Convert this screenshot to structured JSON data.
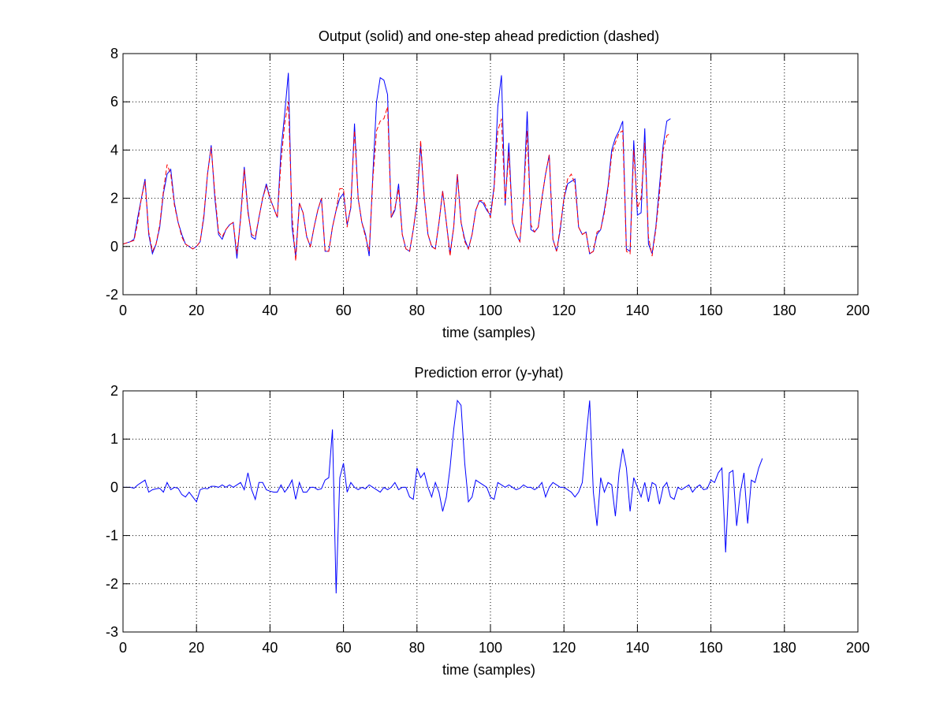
{
  "colors": {
    "output": "#0000ff",
    "prediction": "#ff0000",
    "error": "#0000ff",
    "grid": "#000000",
    "axes": "#000000"
  },
  "chart_data": [
    {
      "type": "line",
      "title": "Output (solid) and one-step ahead prediction (dashed)",
      "xlabel": "time (samples)",
      "ylabel": "",
      "xlim": [
        0,
        200
      ],
      "ylim": [
        -2,
        8
      ],
      "xticks": [
        0,
        20,
        40,
        60,
        80,
        100,
        120,
        140,
        160,
        180,
        200
      ],
      "yticks": [
        -2,
        0,
        2,
        4,
        6,
        8
      ],
      "grid": true,
      "x_start": 0,
      "series": [
        {
          "style": "solid",
          "color": "#0000ff",
          "values": [
            0.1,
            0.15,
            0.2,
            0.3,
            1.2,
            2.0,
            2.8,
            0.5,
            -0.3,
            0.1,
            0.8,
            2.2,
            3.0,
            3.2,
            1.8,
            1.0,
            0.5,
            0.1,
            0.0,
            -0.1,
            0.0,
            0.2,
            1.2,
            3.0,
            4.2,
            2.0,
            0.5,
            0.3,
            0.7,
            0.9,
            1.0,
            -0.5,
            1.2,
            3.3,
            1.5,
            0.4,
            0.3,
            1.2,
            2.0,
            2.6,
            2.0,
            1.6,
            1.2,
            4.0,
            5.5,
            7.2,
            0.8,
            -0.4,
            1.8,
            1.4,
            0.4,
            0.0,
            0.8,
            1.5,
            2.0,
            -0.2,
            -0.2,
            0.8,
            1.5,
            2.0,
            2.2,
            0.9,
            1.6,
            5.1,
            2.0,
            1.0,
            0.5,
            -0.4,
            3.0,
            6.0,
            7.0,
            6.9,
            6.3,
            1.2,
            1.5,
            2.6,
            0.5,
            -0.1,
            -0.2,
            0.7,
            1.8,
            4.2,
            2.0,
            0.5,
            0.0,
            -0.1,
            1.0,
            2.3,
            1.0,
            -0.3,
            0.8,
            3.0,
            1.0,
            0.3,
            -0.1,
            0.5,
            1.5,
            1.9,
            1.8,
            1.5,
            1.3,
            2.5,
            5.8,
            7.1,
            1.7,
            4.3,
            1.0,
            0.5,
            0.2,
            2.0,
            5.6,
            0.7,
            0.6,
            0.8,
            2.0,
            3.0,
            3.8,
            0.3,
            -0.2,
            0.7,
            2.0,
            2.6,
            2.7,
            2.8,
            0.8,
            0.5,
            0.6,
            -0.3,
            -0.2,
            0.5,
            0.7,
            1.5,
            2.5,
            4.0,
            4.5,
            4.8,
            5.2,
            -0.1,
            -0.2,
            4.4,
            1.3,
            1.4,
            4.9,
            0.1,
            -0.3,
            0.8,
            2.5,
            4.2,
            5.2,
            5.3
          ]
        },
        {
          "style": "dashed",
          "color": "#ff0000",
          "values": [
            0.1,
            0.15,
            0.2,
            0.25,
            1.0,
            2.0,
            2.7,
            0.6,
            -0.2,
            0.1,
            0.9,
            2.3,
            3.4,
            3.0,
            1.7,
            1.0,
            0.4,
            0.1,
            0.0,
            -0.1,
            0.0,
            0.2,
            1.3,
            3.0,
            4.1,
            2.2,
            0.6,
            0.4,
            0.7,
            0.9,
            1.0,
            -0.3,
            1.1,
            3.2,
            1.4,
            0.5,
            0.4,
            1.2,
            2.0,
            2.5,
            2.0,
            1.6,
            1.2,
            3.5,
            5.1,
            6.0,
            1.3,
            -0.6,
            1.8,
            1.4,
            0.4,
            0.0,
            0.8,
            1.5,
            2.0,
            -0.2,
            -0.2,
            0.8,
            1.5,
            2.4,
            2.4,
            0.8,
            1.7,
            4.8,
            2.0,
            1.0,
            0.4,
            -0.2,
            2.8,
            4.8,
            5.2,
            5.3,
            5.8,
            1.2,
            1.6,
            2.4,
            0.5,
            -0.1,
            -0.2,
            0.7,
            1.9,
            4.4,
            2.0,
            0.5,
            0.0,
            -0.1,
            1.0,
            2.3,
            1.0,
            -0.4,
            0.8,
            3.0,
            1.0,
            0.2,
            -0.1,
            0.5,
            1.5,
            1.9,
            1.9,
            1.6,
            1.2,
            2.4,
            4.8,
            5.3,
            1.8,
            3.9,
            1.0,
            0.5,
            0.2,
            2.0,
            4.8,
            0.9,
            0.6,
            0.8,
            2.0,
            3.0,
            3.8,
            0.3,
            -0.2,
            0.8,
            2.0,
            2.8,
            3.0,
            2.6,
            0.8,
            0.5,
            0.6,
            -0.3,
            -0.2,
            0.6,
            0.7,
            1.4,
            2.4,
            3.8,
            4.3,
            4.7,
            4.8,
            -0.2,
            -0.3,
            4.0,
            1.6,
            2.0,
            4.3,
            0.4,
            -0.4,
            0.7,
            2.2,
            4.0,
            4.6,
            4.7
          ]
        }
      ]
    },
    {
      "type": "line",
      "title": "Prediction error (y-yhat)",
      "xlabel": "time (samples)",
      "ylabel": "",
      "xlim": [
        0,
        200
      ],
      "ylim": [
        -3,
        2
      ],
      "xticks": [
        0,
        20,
        40,
        60,
        80,
        100,
        120,
        140,
        160,
        180,
        200
      ],
      "yticks": [
        -3,
        -2,
        -1,
        0,
        1,
        2
      ],
      "grid": true,
      "x_start": 0,
      "series": [
        {
          "style": "solid",
          "color": "#0000ff",
          "values": [
            0,
            0,
            0,
            -0.02,
            0.05,
            0.1,
            0.15,
            -0.1,
            -0.05,
            -0.03,
            -0.02,
            -0.1,
            0.1,
            -0.05,
            0.0,
            -0.02,
            -0.15,
            -0.2,
            -0.1,
            -0.2,
            -0.3,
            -0.05,
            -0.02,
            -0.03,
            0.02,
            0.02,
            0.0,
            0.05,
            0.0,
            0.05,
            0.0,
            0.05,
            0.1,
            -0.05,
            0.3,
            -0.05,
            -0.25,
            0.1,
            0.1,
            -0.05,
            -0.08,
            -0.1,
            -0.1,
            0.05,
            -0.1,
            0.0,
            0.15,
            -0.25,
            0.1,
            -0.1,
            -0.1,
            0.0,
            0.0,
            -0.05,
            -0.03,
            0.15,
            0.2,
            1.2,
            -2.2,
            0.2,
            0.5,
            -0.1,
            0.1,
            0.0,
            -0.05,
            0.0,
            -0.03,
            0.05,
            0.0,
            -0.05,
            -0.1,
            0.0,
            -0.05,
            0.0,
            0.1,
            -0.05,
            0.0,
            0.0,
            -0.2,
            -0.25,
            0.4,
            0.2,
            0.3,
            0.0,
            -0.2,
            0.1,
            -0.1,
            -0.5,
            -0.2,
            0.4,
            1.2,
            1.8,
            1.7,
            0.5,
            -0.3,
            -0.2,
            0.15,
            0.1,
            0.05,
            0.0,
            -0.2,
            -0.25,
            0.1,
            0.05,
            0.0,
            0.05,
            0.0,
            -0.05,
            -0.02,
            0.05,
            0.0,
            0.0,
            -0.05,
            0.0,
            0.1,
            -0.2,
            0.0,
            0.1,
            0.05,
            0.0,
            0.0,
            -0.05,
            -0.1,
            -0.2,
            -0.1,
            0.1,
            1.0,
            1.8,
            -0.1,
            -0.8,
            0.2,
            -0.1,
            0.1,
            0.05,
            -0.6,
            0.3,
            0.8,
            0.4,
            -0.5,
            0.2,
            0.0,
            -0.2,
            0.1,
            -0.3,
            0.1,
            0.05,
            -0.35,
            0.0,
            0.1,
            -0.2,
            -0.25,
            0.0,
            -0.05,
            0.0,
            0.05,
            -0.1,
            0.0,
            0.05,
            -0.05,
            -0.03,
            0.15,
            0.1,
            0.3,
            0.4,
            -1.35,
            0.3,
            0.35,
            -0.8,
            -0.1,
            0.3,
            -0.75,
            0.15,
            0.1,
            0.4,
            0.6
          ]
        }
      ]
    }
  ]
}
